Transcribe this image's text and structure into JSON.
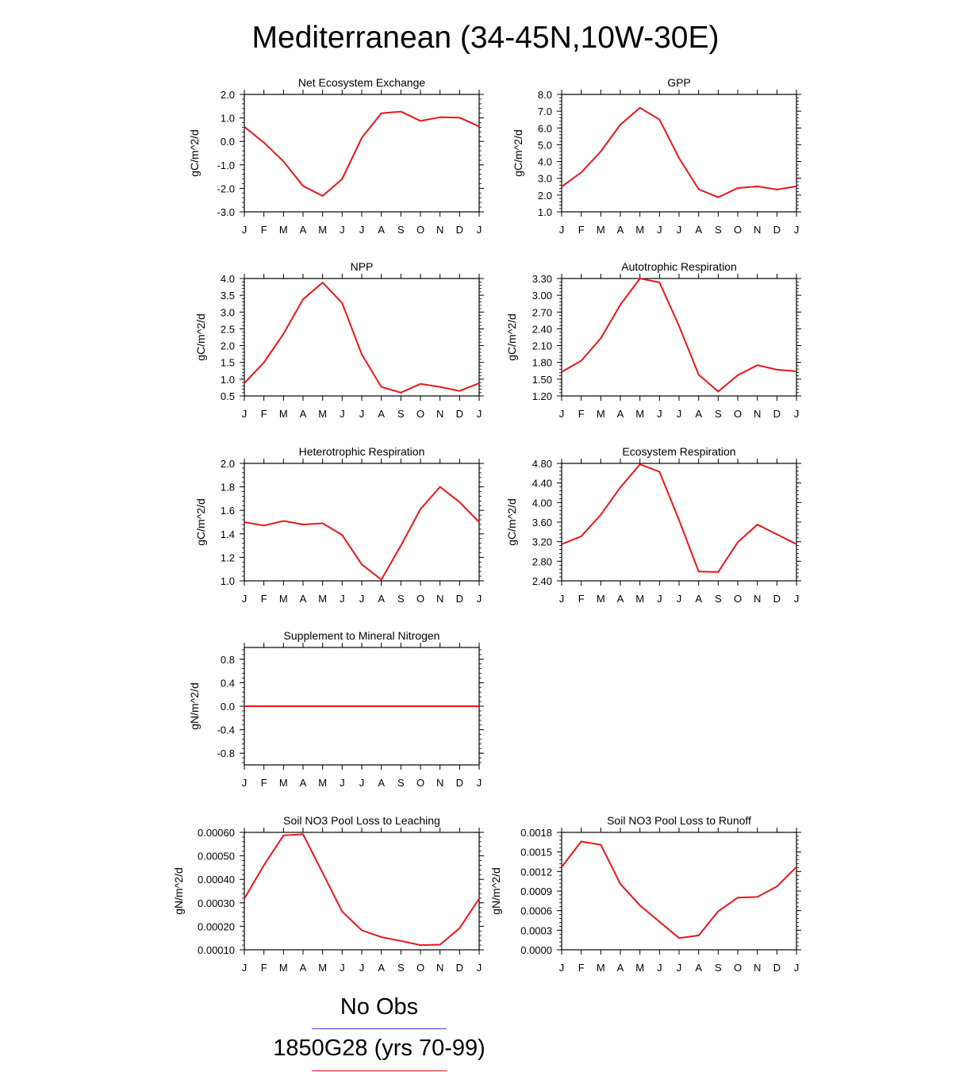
{
  "title": "Mediterranean (34-45N,10W-30E)",
  "month_labels": [
    "J",
    "F",
    "M",
    "A",
    "M",
    "J",
    "J",
    "A",
    "S",
    "O",
    "N",
    "D",
    "J"
  ],
  "line_color": "#e8161b",
  "chart_data": [
    {
      "type": "line",
      "title": "Net Ecosystem Exchange",
      "ylabel": "gC/m^2/d",
      "ylim": [
        -3.0,
        2.0
      ],
      "yticks": [
        -3.0,
        -2.0,
        -1.0,
        0.0,
        1.0,
        2.0
      ],
      "ytick_labels": [
        "-3.0",
        "-2.0",
        "-1.0",
        "0.0",
        "1.0",
        "2.0"
      ],
      "x": [
        "J",
        "F",
        "M",
        "A",
        "M",
        "J",
        "J",
        "A",
        "S",
        "O",
        "N",
        "D",
        "J"
      ],
      "values": [
        0.62,
        -0.05,
        -0.85,
        -1.9,
        -2.32,
        -1.6,
        0.15,
        1.2,
        1.27,
        0.87,
        1.03,
        1.01,
        0.64
      ]
    },
    {
      "type": "line",
      "title": "GPP",
      "ylabel": "gC/m^2/d",
      "ylim": [
        1.0,
        8.0
      ],
      "yticks": [
        1,
        2,
        3,
        4,
        5,
        6,
        7,
        8
      ],
      "ytick_labels": [
        "1.0",
        "2.0",
        "3.0",
        "4.0",
        "5.0",
        "6.0",
        "7.0",
        "8.0"
      ],
      "x": [
        "J",
        "F",
        "M",
        "A",
        "M",
        "J",
        "J",
        "A",
        "S",
        "O",
        "N",
        "D",
        "J"
      ],
      "values": [
        2.5,
        3.35,
        4.6,
        6.2,
        7.2,
        6.5,
        4.2,
        2.35,
        1.87,
        2.42,
        2.52,
        2.33,
        2.52
      ]
    },
    {
      "type": "line",
      "title": "NPP",
      "ylabel": "gC/m^2/d",
      "ylim": [
        0.5,
        4.0
      ],
      "yticks": [
        0.5,
        1.0,
        1.5,
        2.0,
        2.5,
        3.0,
        3.5,
        4.0
      ],
      "ytick_labels": [
        "0.5",
        "1.0",
        "1.5",
        "2.0",
        "2.5",
        "3.0",
        "3.5",
        "4.0"
      ],
      "x": [
        "J",
        "F",
        "M",
        "A",
        "M",
        "J",
        "J",
        "A",
        "S",
        "O",
        "N",
        "D",
        "J"
      ],
      "values": [
        0.88,
        1.5,
        2.35,
        3.38,
        3.88,
        3.27,
        1.74,
        0.77,
        0.6,
        0.86,
        0.77,
        0.65,
        0.88
      ]
    },
    {
      "type": "line",
      "title": "Autotrophic Respiration",
      "ylabel": "gC/m^2/d",
      "ylim": [
        1.2,
        3.3
      ],
      "yticks": [
        1.2,
        1.5,
        1.8,
        2.1,
        2.4,
        2.7,
        3.0,
        3.3
      ],
      "ytick_labels": [
        "1.20",
        "1.50",
        "1.80",
        "2.10",
        "2.40",
        "2.70",
        "3.00",
        "3.30"
      ],
      "x": [
        "J",
        "F",
        "M",
        "A",
        "M",
        "J",
        "J",
        "A",
        "S",
        "O",
        "N",
        "D",
        "J"
      ],
      "values": [
        1.63,
        1.83,
        2.23,
        2.83,
        3.3,
        3.23,
        2.45,
        1.58,
        1.28,
        1.57,
        1.75,
        1.67,
        1.64
      ]
    },
    {
      "type": "line",
      "title": "Heterotrophic Respiration",
      "ylabel": "gC/m^2/d",
      "ylim": [
        1.0,
        2.0
      ],
      "yticks": [
        1.0,
        1.2,
        1.4,
        1.6,
        1.8,
        2.0
      ],
      "ytick_labels": [
        "1.0",
        "1.2",
        "1.4",
        "1.6",
        "1.8",
        "2.0"
      ],
      "x": [
        "J",
        "F",
        "M",
        "A",
        "M",
        "J",
        "J",
        "A",
        "S",
        "O",
        "N",
        "D",
        "J"
      ],
      "values": [
        1.5,
        1.47,
        1.51,
        1.48,
        1.49,
        1.39,
        1.14,
        1.01,
        1.3,
        1.61,
        1.8,
        1.67,
        1.5
      ]
    },
    {
      "type": "line",
      "title": "Ecosystem Respiration",
      "ylabel": "gC/m^2/d",
      "ylim": [
        2.4,
        4.8
      ],
      "yticks": [
        2.4,
        2.8,
        3.2,
        3.6,
        4.0,
        4.4,
        4.8
      ],
      "ytick_labels": [
        "2.40",
        "2.80",
        "3.20",
        "3.60",
        "4.00",
        "4.40",
        "4.80"
      ],
      "x": [
        "J",
        "F",
        "M",
        "A",
        "M",
        "J",
        "J",
        "A",
        "S",
        "O",
        "N",
        "D",
        "J"
      ],
      "values": [
        3.15,
        3.31,
        3.75,
        4.31,
        4.78,
        4.63,
        3.64,
        2.59,
        2.58,
        3.19,
        3.55,
        3.35,
        3.15
      ]
    },
    {
      "type": "line",
      "title": "Supplement to Mineral Nitrogen",
      "ylabel": "gN/m^2/d",
      "ylim": [
        -1.0,
        1.0
      ],
      "yticks": [
        -0.8,
        -0.4,
        0.0,
        0.4,
        0.8
      ],
      "ytick_labels": [
        "-0.8",
        "-0.4",
        "0.0",
        "0.4",
        "0.8"
      ],
      "x": [
        "J",
        "F",
        "M",
        "A",
        "M",
        "J",
        "J",
        "A",
        "S",
        "O",
        "N",
        "D",
        "J"
      ],
      "values": [
        0,
        0,
        0,
        0,
        0,
        0,
        0,
        0,
        0,
        0,
        0,
        0,
        0
      ]
    },
    {
      "type": "line",
      "title": "Soil NO3 Pool Loss to Leaching",
      "ylabel": "gN/m^2/d",
      "ylim": [
        0.0001,
        0.0006
      ],
      "yticks": [
        0.0001,
        0.0002,
        0.0003,
        0.0004,
        0.0005,
        0.0006
      ],
      "ytick_labels": [
        "0.00010",
        "0.00020",
        "0.00030",
        "0.00040",
        "0.00050",
        "0.00060"
      ],
      "x": [
        "J",
        "F",
        "M",
        "A",
        "M",
        "J",
        "J",
        "A",
        "S",
        "O",
        "N",
        "D",
        "J"
      ],
      "values": [
        0.000318,
        0.00046,
        0.000587,
        0.000592,
        0.000428,
        0.000263,
        0.000183,
        0.000154,
        0.000138,
        0.00012,
        0.000122,
        0.000192,
        0.000318
      ]
    },
    {
      "type": "line",
      "title": "Soil NO3 Pool Loss to Runoff",
      "ylabel": "gN/m^2/d",
      "ylim": [
        0.0,
        0.0018
      ],
      "yticks": [
        0.0,
        0.0003,
        0.0006,
        0.0009,
        0.0012,
        0.0015,
        0.0018
      ],
      "ytick_labels": [
        "0.0000",
        "0.0003",
        "0.0006",
        "0.0009",
        "0.0012",
        "0.0015",
        "0.0018"
      ],
      "x": [
        "J",
        "F",
        "M",
        "A",
        "M",
        "J",
        "J",
        "A",
        "S",
        "O",
        "N",
        "D",
        "J"
      ],
      "values": [
        0.00127,
        0.00166,
        0.00161,
        0.00101,
        0.00068,
        0.00043,
        0.00018,
        0.00022,
        0.00059,
        0.0008,
        0.00081,
        0.00097,
        0.00127
      ]
    }
  ],
  "legend": {
    "items": [
      {
        "label": "No Obs",
        "color": "#3a4ad8"
      },
      {
        "label": "1850G28 (yrs 70-99)",
        "color": "#e8161b"
      }
    ]
  }
}
